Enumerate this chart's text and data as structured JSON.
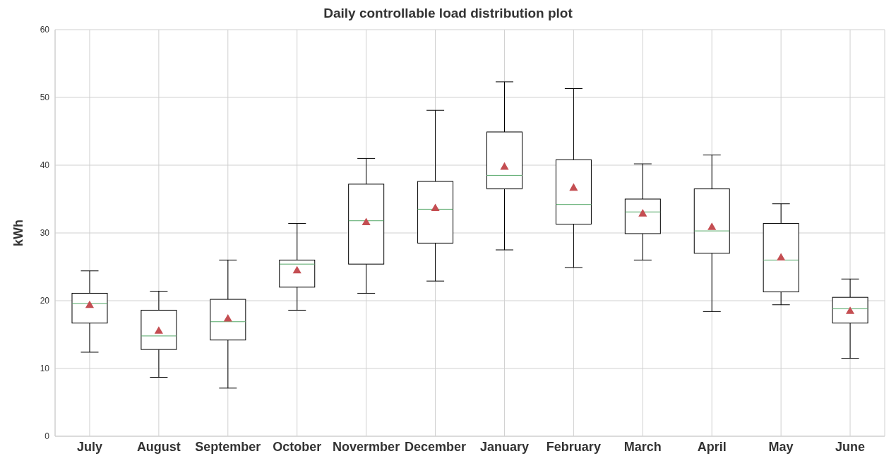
{
  "chart_data": {
    "type": "box",
    "title": "Daily controllable load distribution plot",
    "ylabel": "kWh",
    "categories": [
      "July",
      "August",
      "September",
      "October",
      "Novermber",
      "December",
      "January",
      "February",
      "March",
      "April",
      "May",
      "June"
    ],
    "series": [
      {
        "color": "#000000",
        "boxes": [
          {
            "low": 12.4,
            "q1": 16.7,
            "median": 19.6,
            "q3": 21.1,
            "high": 24.4,
            "mean": 19.3
          },
          {
            "low": 8.7,
            "q1": 12.8,
            "median": 14.8,
            "q3": 18.6,
            "high": 21.4,
            "mean": 15.5
          },
          {
            "low": 7.1,
            "q1": 14.2,
            "median": 16.9,
            "q3": 20.2,
            "high": 26.0,
            "mean": 17.3
          },
          {
            "low": 18.6,
            "q1": 22.0,
            "median": 25.4,
            "q3": 26.0,
            "high": 31.4,
            "mean": 24.4
          },
          {
            "low": 21.1,
            "q1": 25.4,
            "median": 31.8,
            "q3": 37.2,
            "high": 41.0,
            "mean": 31.5
          },
          {
            "low": 22.9,
            "q1": 28.5,
            "median": 33.5,
            "q3": 37.6,
            "high": 48.1,
            "mean": 33.6
          },
          {
            "low": 27.5,
            "q1": 36.5,
            "median": 38.5,
            "q3": 44.9,
            "high": 52.3,
            "mean": 39.7
          },
          {
            "low": 24.9,
            "q1": 31.3,
            "median": 34.2,
            "q3": 40.8,
            "high": 51.3,
            "mean": 36.6
          },
          {
            "low": 26.0,
            "q1": 29.9,
            "median": 33.1,
            "q3": 35.0,
            "high": 40.2,
            "mean": 32.8
          },
          {
            "low": 18.4,
            "q1": 27.0,
            "median": 30.3,
            "q3": 36.5,
            "high": 41.5,
            "mean": 30.8
          },
          {
            "low": 19.4,
            "q1": 21.3,
            "median": 26.0,
            "q3": 31.4,
            "high": 34.3,
            "mean": 26.3
          },
          {
            "low": 11.5,
            "q1": 16.7,
            "median": 18.8,
            "q3": 20.5,
            "high": 23.2,
            "mean": 18.4
          }
        ]
      }
    ],
    "ylim": [
      0,
      60
    ],
    "yticks": [
      0,
      10,
      20,
      30,
      40,
      50,
      60
    ],
    "grid": true,
    "marker": "triangle"
  }
}
